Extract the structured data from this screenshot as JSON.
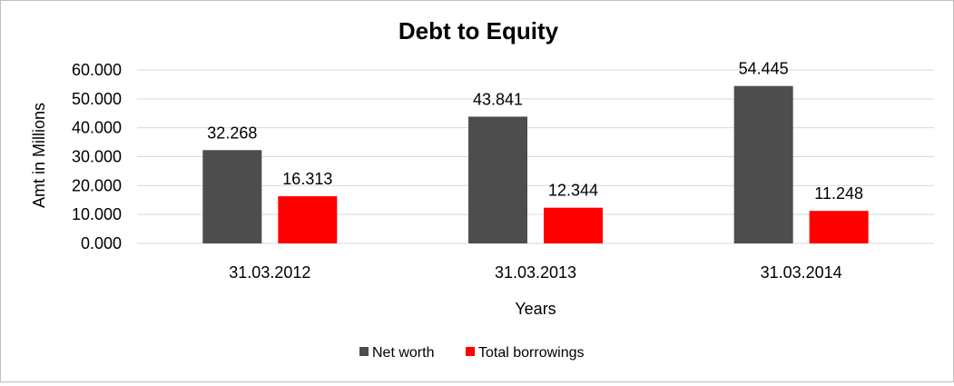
{
  "chart_data": {
    "type": "bar",
    "title": "Debt to Equity",
    "xlabel": "Years",
    "ylabel": "Amt in Millions",
    "categories": [
      "31.03.2012",
      "31.03.2013",
      "31.03.2014"
    ],
    "ylim": [
      0,
      60
    ],
    "yticks": [
      0,
      10,
      20,
      30,
      40,
      50,
      60
    ],
    "ytick_labels": [
      "0.000",
      "10.000",
      "20.000",
      "30.000",
      "40.000",
      "50.000",
      "60.000"
    ],
    "grid": true,
    "legend_position": "bottom",
    "series": [
      {
        "name": "Net worth",
        "color": "#4d4d4d",
        "values": [
          32.268,
          43.841,
          54.445
        ],
        "labels": [
          "32.268",
          "43.841",
          "54.445"
        ]
      },
      {
        "name": "Total borrowings",
        "color": "#ff0000",
        "values": [
          16.313,
          12.344,
          11.248
        ],
        "labels": [
          "16.313",
          "12.344",
          "11.248"
        ]
      }
    ]
  }
}
